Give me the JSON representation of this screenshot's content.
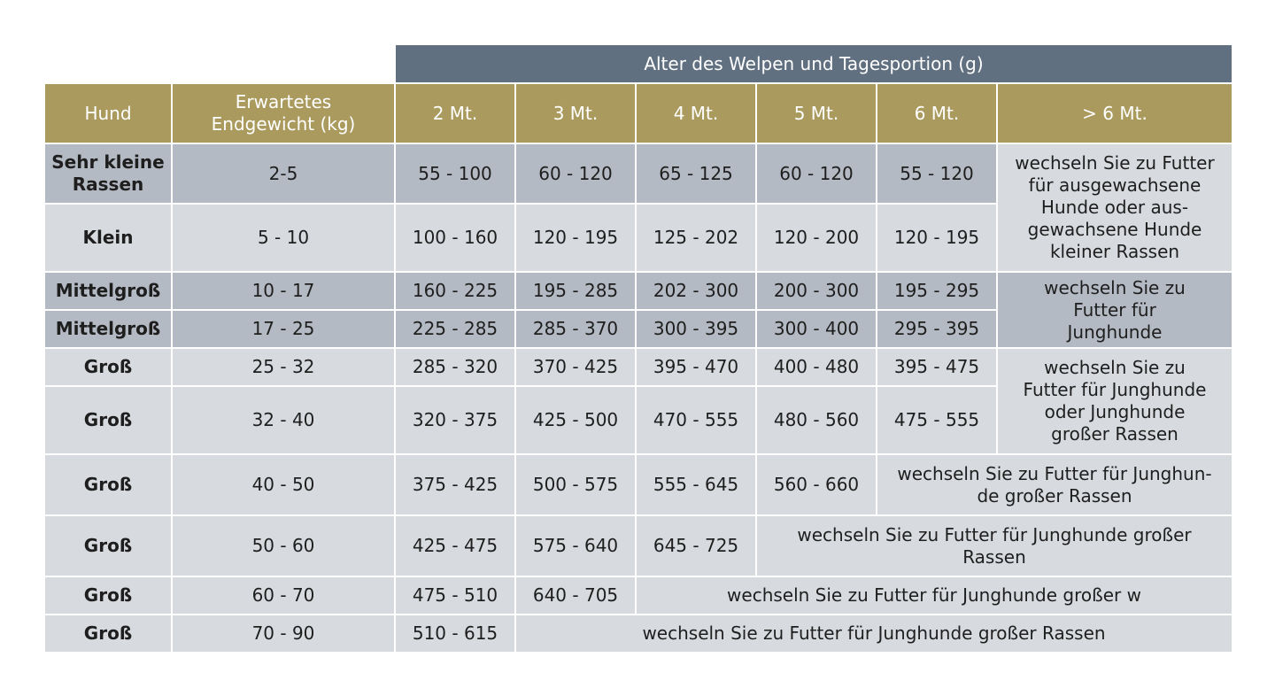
{
  "chart_data": {
    "type": "table",
    "super_header": "Alter des Welpen und Tagesportion (g)",
    "columns": [
      "Hund",
      "Erwartetes Endgewicht (kg)",
      "2 Mt.",
      "3 Mt.",
      "4 Mt.",
      "5 Mt.",
      "6 Mt.",
      "> 6 Mt."
    ],
    "rows": [
      {
        "hund": "Sehr kleine Rassen",
        "gewicht": "2-5",
        "values": [
          "55 - 100",
          "60 - 120",
          "65 - 125",
          "60 - 120",
          "55 - 120"
        ]
      },
      {
        "hund": "Klein",
        "gewicht": "5 - 10",
        "values": [
          "100 - 160",
          "120 - 195",
          "125 - 202",
          "120 - 200",
          "120 - 195"
        ]
      },
      {
        "hund": "Mittelgroß",
        "gewicht": "10 - 17",
        "values": [
          "160 - 225",
          "195 - 285",
          "202 - 300",
          "200 - 300",
          "195 - 295"
        ]
      },
      {
        "hund": "Mittelgroß",
        "gewicht": "17 - 25",
        "values": [
          "225 - 285",
          "285 - 370",
          "300 - 395",
          "300 - 400",
          "295 - 395"
        ]
      },
      {
        "hund": "Groß",
        "gewicht": "25 - 32",
        "values": [
          "285 - 320",
          "370 - 425",
          "395 - 470",
          "400 - 480",
          "395 - 475"
        ]
      },
      {
        "hund": "Groß",
        "gewicht": "32 - 40",
        "values": [
          "320 - 375",
          "425 - 500",
          "470 - 555",
          "480 - 560",
          "475 - 555"
        ]
      },
      {
        "hund": "Groß",
        "gewicht": "40 - 50",
        "values": [
          "375 - 425",
          "500 - 575",
          "555 - 645",
          "560 - 660"
        ]
      },
      {
        "hund": "Groß",
        "gewicht": "50 - 60",
        "values": [
          "425 - 475",
          "575 - 640",
          "645 - 725"
        ]
      },
      {
        "hund": "Groß",
        "gewicht": "60 - 70",
        "values": [
          "475 - 510",
          "640 - 705"
        ]
      },
      {
        "hund": "Groß",
        "gewicht": "70 - 90",
        "values": [
          "510 - 615"
        ]
      }
    ],
    "notes": [
      "wechseln Sie zu Futter für ausgewachsene Hunde oder aus-gewachsene Hunde kleiner Rassen",
      "wechseln Sie zu Futter für Junghunde",
      "wechseln Sie zu Futter für Junghunde oder Junghunde großer Rassen",
      "wechseln Sie zu Futter für Junghun-de großer Rassen",
      "wechseln Sie zu Futter für Junghunde großer Rassen",
      "wechseln Sie zu Futter für Junghunde großer w",
      "wechseln Sie zu Futter für Junghunde großer Rassen"
    ],
    "colors": {
      "header": "#ab9a5e",
      "super_header": "#607080",
      "row_dark": "#b4bac3",
      "row_light": "#d7dadf"
    }
  }
}
